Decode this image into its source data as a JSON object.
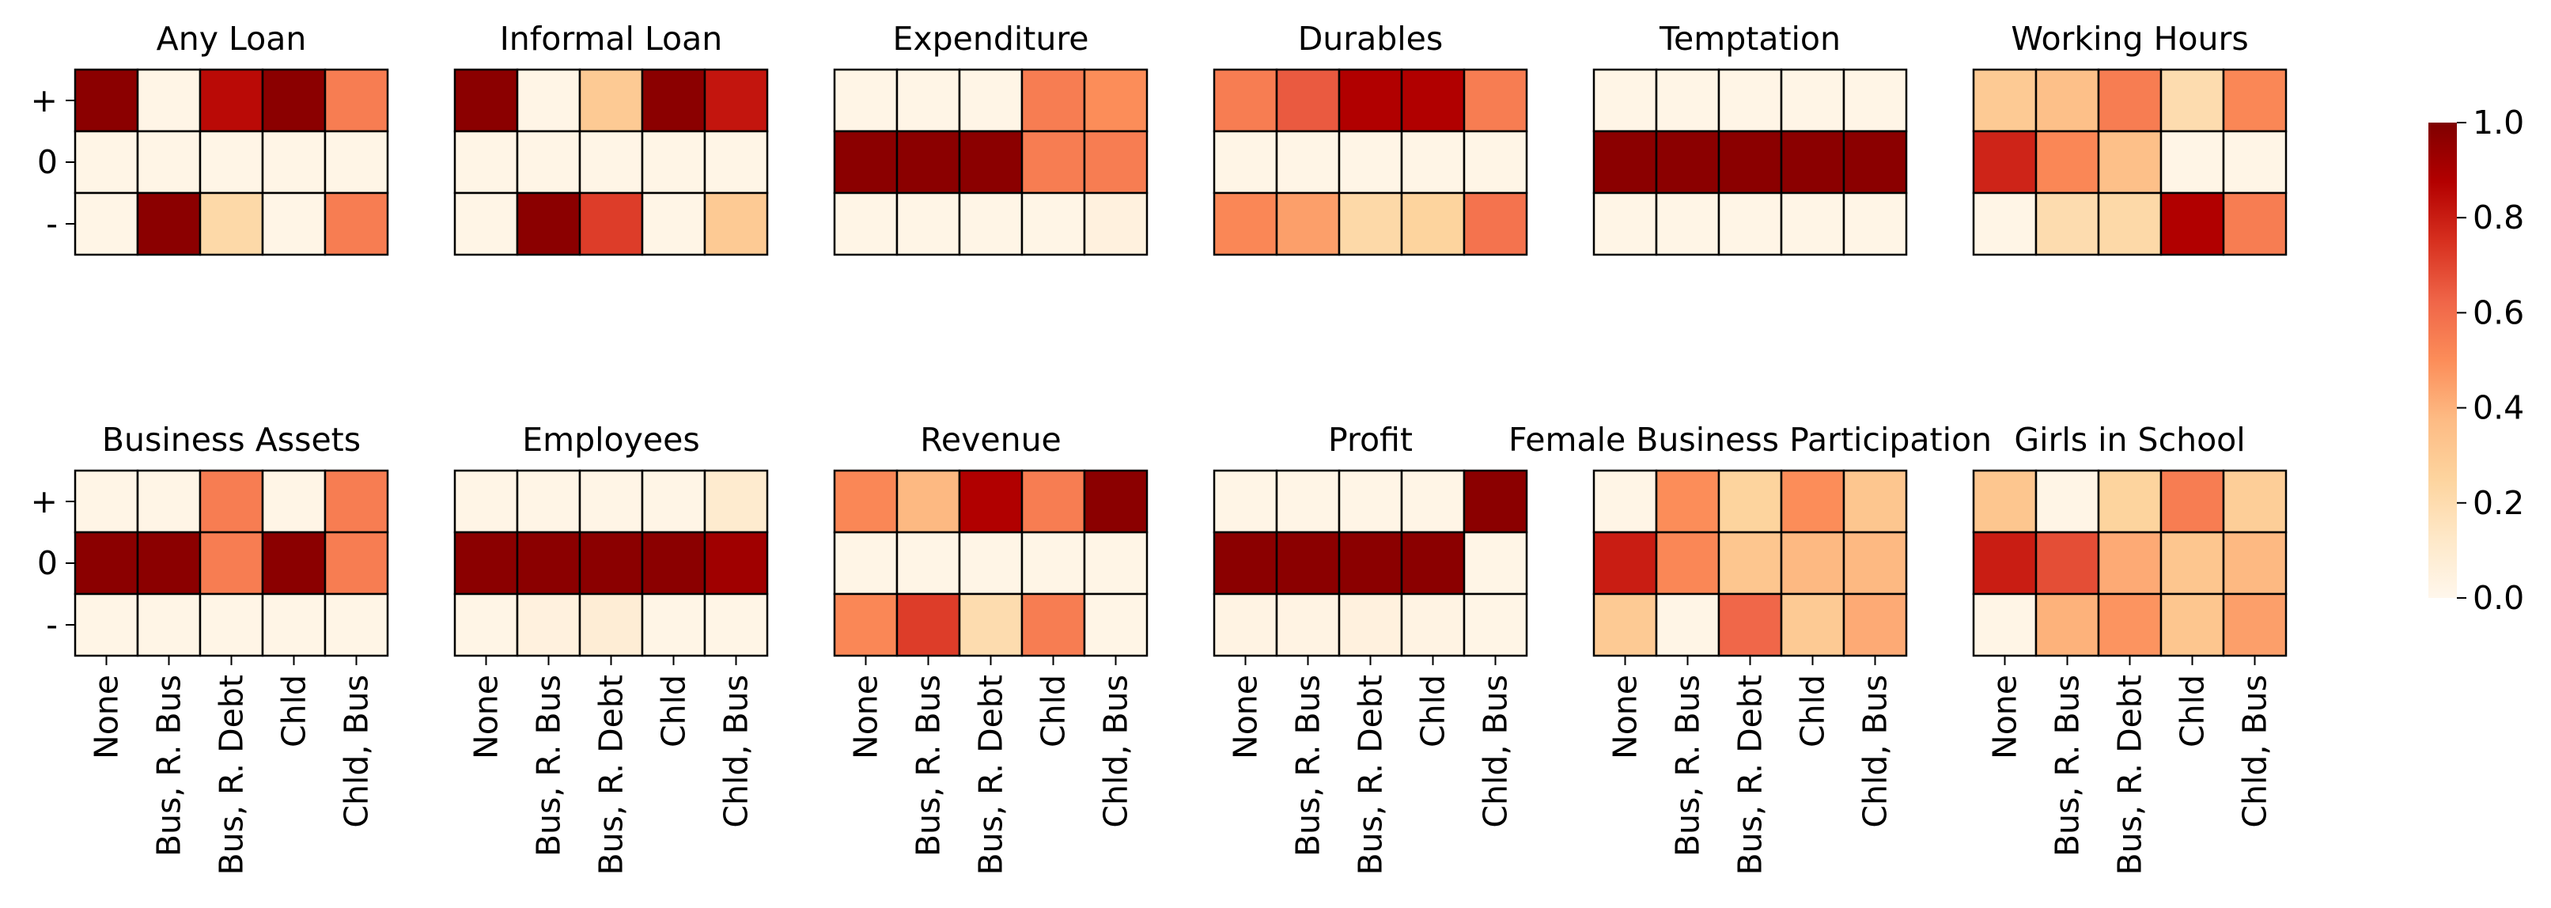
{
  "chart_data": {
    "type": "heatmap",
    "row_labels": [
      "+",
      "0",
      "-"
    ],
    "col_labels": [
      "None",
      "Bus, R. Bus",
      "Bus, R. Debt",
      "Chld",
      "Chld, Bus"
    ],
    "colormap": {
      "name": "OrRd",
      "stops": [
        "#fff7ec",
        "#fee8c8",
        "#fdd49e",
        "#fdbb84",
        "#fc8d59",
        "#ef6548",
        "#d7301f",
        "#b30000",
        "#7f0000"
      ]
    },
    "colorbar": {
      "range": [
        0.0,
        1.0
      ],
      "ticks": [
        0.0,
        0.2,
        0.4,
        0.6,
        0.8,
        1.0
      ],
      "tick_labels": [
        "0.0",
        "0.2",
        "0.4",
        "0.6",
        "0.8",
        "1.0"
      ]
    },
    "panels": [
      {
        "title": "Any Loan",
        "values": [
          [
            0.97,
            0.02,
            0.85,
            0.97,
            0.55
          ],
          [
            0.02,
            0.02,
            0.02,
            0.02,
            0.02
          ],
          [
            0.02,
            0.97,
            0.22,
            0.02,
            0.55
          ]
        ]
      },
      {
        "title": "Informal Loan",
        "values": [
          [
            0.97,
            0.02,
            0.3,
            0.97,
            0.82
          ],
          [
            0.02,
            0.02,
            0.02,
            0.02,
            0.02
          ],
          [
            0.02,
            0.97,
            0.72,
            0.02,
            0.3
          ]
        ]
      },
      {
        "title": "Expenditure",
        "values": [
          [
            0.02,
            0.02,
            0.02,
            0.55,
            0.5
          ],
          [
            0.97,
            0.97,
            0.97,
            0.55,
            0.55
          ],
          [
            0.02,
            0.02,
            0.02,
            0.02,
            0.05
          ]
        ]
      },
      {
        "title": "Durables",
        "values": [
          [
            0.55,
            0.65,
            0.88,
            0.88,
            0.55
          ],
          [
            0.02,
            0.02,
            0.02,
            0.02,
            0.02
          ],
          [
            0.52,
            0.45,
            0.22,
            0.25,
            0.58
          ]
        ]
      },
      {
        "title": "Temptation",
        "values": [
          [
            0.02,
            0.02,
            0.02,
            0.02,
            0.02
          ],
          [
            0.97,
            0.97,
            0.97,
            0.97,
            0.97
          ],
          [
            0.02,
            0.02,
            0.02,
            0.02,
            0.02
          ]
        ]
      },
      {
        "title": "Working Hours",
        "values": [
          [
            0.3,
            0.35,
            0.55,
            0.2,
            0.52
          ],
          [
            0.78,
            0.52,
            0.35,
            0.02,
            0.02
          ],
          [
            0.02,
            0.2,
            0.22,
            0.88,
            0.55
          ]
        ]
      },
      {
        "title": "Business Assets",
        "values": [
          [
            0.02,
            0.02,
            0.55,
            0.02,
            0.55
          ],
          [
            0.97,
            0.97,
            0.55,
            0.97,
            0.55
          ],
          [
            0.02,
            0.02,
            0.02,
            0.02,
            0.02
          ]
        ]
      },
      {
        "title": "Employees",
        "values": [
          [
            0.02,
            0.02,
            0.02,
            0.02,
            0.1
          ],
          [
            0.97,
            0.97,
            0.97,
            0.97,
            0.92
          ],
          [
            0.02,
            0.05,
            0.08,
            0.02,
            0.02
          ]
        ]
      },
      {
        "title": "Revenue",
        "values": [
          [
            0.52,
            0.38,
            0.88,
            0.55,
            0.97
          ],
          [
            0.02,
            0.02,
            0.02,
            0.02,
            0.02
          ],
          [
            0.52,
            0.72,
            0.2,
            0.55,
            0.02
          ]
        ]
      },
      {
        "title": "Profit",
        "values": [
          [
            0.02,
            0.02,
            0.02,
            0.02,
            0.97
          ],
          [
            0.97,
            0.97,
            0.97,
            0.97,
            0.02
          ],
          [
            0.03,
            0.03,
            0.05,
            0.03,
            0.02
          ]
        ]
      },
      {
        "title": "Female Business Participation",
        "values": [
          [
            0.02,
            0.5,
            0.25,
            0.5,
            0.32
          ],
          [
            0.8,
            0.52,
            0.32,
            0.38,
            0.38
          ],
          [
            0.3,
            0.02,
            0.62,
            0.3,
            0.42
          ]
        ]
      },
      {
        "title": "Girls in School",
        "values": [
          [
            0.32,
            0.02,
            0.25,
            0.55,
            0.28
          ],
          [
            0.8,
            0.68,
            0.42,
            0.32,
            0.38
          ],
          [
            0.02,
            0.4,
            0.48,
            0.32,
            0.45
          ]
        ]
      }
    ]
  }
}
